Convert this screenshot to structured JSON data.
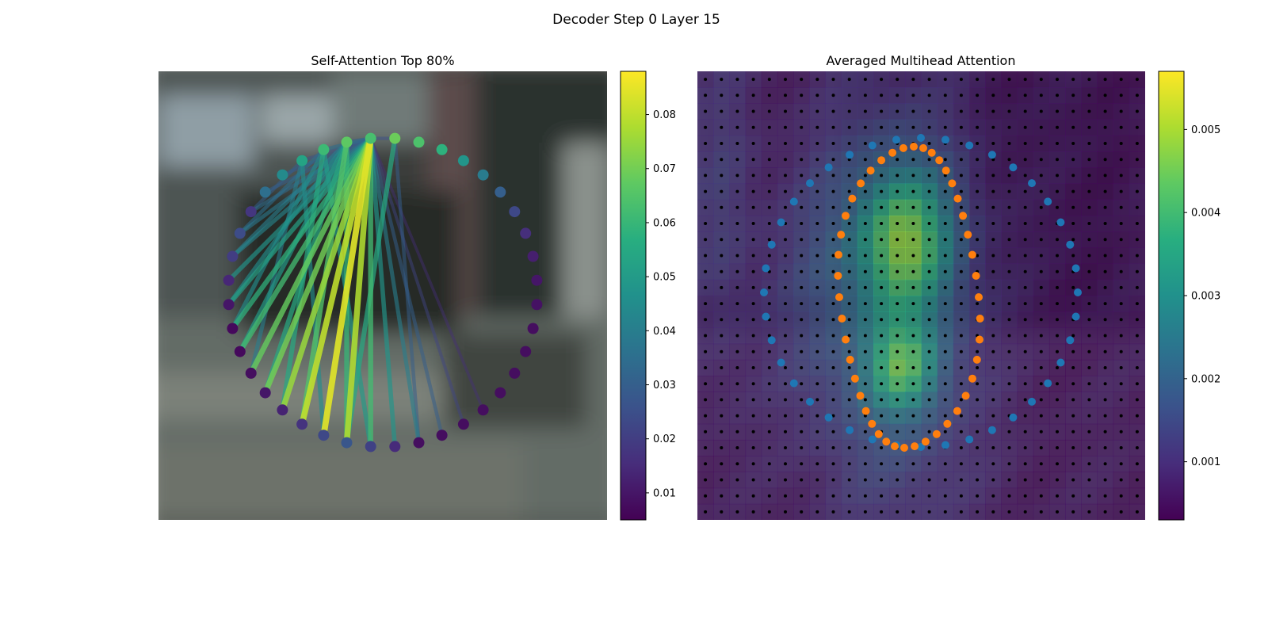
{
  "figure": {
    "suptitle": "Decoder Step 0 Layer 15"
  },
  "chart_data": [
    {
      "type": "network",
      "title": "Self-Attention Top 80%",
      "colormap": "viridis",
      "background": "blurred street photo",
      "num_nodes": 40,
      "node_values": [
        0.063,
        0.069,
        0.064,
        0.058,
        0.048,
        0.039,
        0.03,
        0.023,
        0.016,
        0.012,
        0.01,
        0.009,
        0.008,
        0.008,
        0.008,
        0.008,
        0.008,
        0.008,
        0.008,
        0.008,
        0.015,
        0.021,
        0.027,
        0.023,
        0.017,
        0.013,
        0.01,
        0.008,
        0.007,
        0.007,
        0.01,
        0.014,
        0.02,
        0.024,
        0.018,
        0.035,
        0.044,
        0.053,
        0.061,
        0.067
      ],
      "edges": [
        {
          "from": 0,
          "to": 20,
          "value": 0.048
        },
        {
          "from": 0,
          "to": 21,
          "value": 0.062
        },
        {
          "from": 0,
          "to": 22,
          "value": 0.078
        },
        {
          "from": 0,
          "to": 23,
          "value": 0.084
        },
        {
          "from": 0,
          "to": 24,
          "value": 0.08
        },
        {
          "from": 0,
          "to": 25,
          "value": 0.075
        },
        {
          "from": 0,
          "to": 26,
          "value": 0.07
        },
        {
          "from": 0,
          "to": 27,
          "value": 0.068
        },
        {
          "from": 0,
          "to": 28,
          "value": 0.062
        },
        {
          "from": 0,
          "to": 29,
          "value": 0.058
        },
        {
          "from": 0,
          "to": 30,
          "value": 0.052
        },
        {
          "from": 0,
          "to": 31,
          "value": 0.048
        },
        {
          "from": 0,
          "to": 32,
          "value": 0.042
        },
        {
          "from": 0,
          "to": 33,
          "value": 0.038
        },
        {
          "from": 0,
          "to": 34,
          "value": 0.034
        },
        {
          "from": 0,
          "to": 35,
          "value": 0.03
        },
        {
          "from": 0,
          "to": 36,
          "value": 0.028
        },
        {
          "from": 0,
          "to": 37,
          "value": 0.026
        },
        {
          "from": 0,
          "to": 19,
          "value": 0.04
        },
        {
          "from": 0,
          "to": 18,
          "value": 0.03
        },
        {
          "from": 0,
          "to": 17,
          "value": 0.022
        },
        {
          "from": 0,
          "to": 16,
          "value": 0.016
        },
        {
          "from": 39,
          "to": 22,
          "value": 0.06
        },
        {
          "from": 39,
          "to": 24,
          "value": 0.065
        },
        {
          "from": 39,
          "to": 26,
          "value": 0.055
        },
        {
          "from": 39,
          "to": 28,
          "value": 0.05
        },
        {
          "from": 39,
          "to": 30,
          "value": 0.045
        },
        {
          "from": 39,
          "to": 32,
          "value": 0.04
        },
        {
          "from": 38,
          "to": 21,
          "value": 0.05
        },
        {
          "from": 38,
          "to": 25,
          "value": 0.055
        },
        {
          "from": 38,
          "to": 29,
          "value": 0.045
        },
        {
          "from": 38,
          "to": 33,
          "value": 0.035
        },
        {
          "from": 37,
          "to": 23,
          "value": 0.045
        },
        {
          "from": 37,
          "to": 27,
          "value": 0.04
        },
        {
          "from": 37,
          "to": 34,
          "value": 0.03
        },
        {
          "from": 1,
          "to": 19,
          "value": 0.03
        },
        {
          "from": 1,
          "to": 22,
          "value": 0.055
        },
        {
          "from": 0,
          "to": 38,
          "value": 0.035
        },
        {
          "from": 0,
          "to": 39,
          "value": 0.03
        },
        {
          "from": 0,
          "to": 1,
          "value": 0.025
        }
      ],
      "colorbar": {
        "ticks": [
          0.01,
          0.02,
          0.03,
          0.04,
          0.05,
          0.06,
          0.07,
          0.08
        ],
        "tick_labels": [
          "0.01",
          "0.02",
          "0.03",
          "0.04",
          "0.05",
          "0.06",
          "0.07",
          "0.08"
        ],
        "range": [
          0.005,
          0.088
        ]
      }
    },
    {
      "type": "heatmap",
      "title": "Averaged Multihead Attention",
      "colormap": "viridis",
      "overlay": "grid of black reference points with blue (outer ring) and orange (inner ring) sample points",
      "grid_size": [
        28,
        28
      ],
      "hotspots": [
        {
          "cx": 12.5,
          "cy": 10.0,
          "sx": 2.0,
          "sy": 3.0,
          "amp": 0.003
        },
        {
          "cx": 12.3,
          "cy": 18.0,
          "sx": 1.5,
          "sy": 2.0,
          "amp": 0.0025
        },
        {
          "cx": 12.0,
          "cy": 14.0,
          "sx": 3.5,
          "sy": 9.0,
          "amp": 0.0015
        },
        {
          "cx": 7.0,
          "cy": 13.0,
          "sx": 2.5,
          "sy": 6.0,
          "amp": 0.0005
        },
        {
          "cx": 1.0,
          "cy": 8.0,
          "sx": 1.5,
          "sy": 8.0,
          "amp": 0.0006
        }
      ],
      "base_value": 0.0005,
      "colorbar": {
        "ticks": [
          0.001,
          0.002,
          0.003,
          0.004,
          0.005
        ],
        "tick_labels": [
          "0.001",
          "0.002",
          "0.003",
          "0.004",
          "0.005"
        ],
        "range": [
          0.0003,
          0.0057
        ]
      }
    }
  ]
}
